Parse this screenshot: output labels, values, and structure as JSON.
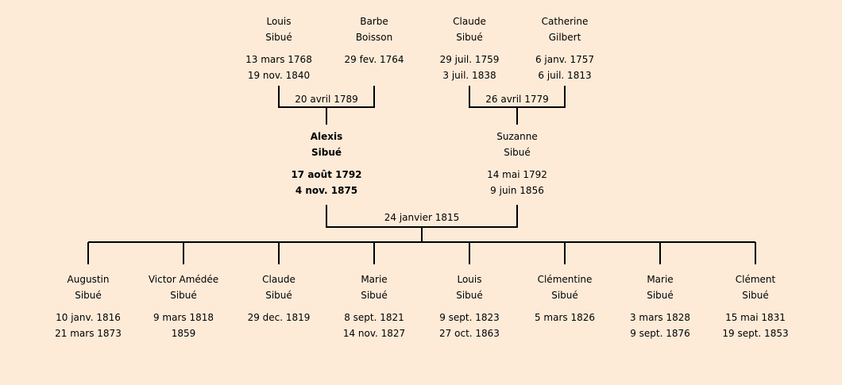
{
  "grandparents": [
    {
      "first": "Louis",
      "last": "Sibué",
      "birth": "13 mars 1768",
      "death": "19 nov. 1840"
    },
    {
      "first": "Barbe",
      "last": "Boisson",
      "birth": "29 fev. 1764",
      "death": ""
    },
    {
      "first": "Claude",
      "last": "Sibué",
      "birth": "29 juil. 1759",
      "death": "3 juil. 1838"
    },
    {
      "first": "Catherine",
      "last": "Gilbert",
      "birth": "6 janv. 1757",
      "death": "6 juil. 1813"
    }
  ],
  "grandparent_marriages": [
    "20 avril 1789",
    "26 avril 1779"
  ],
  "parents": [
    {
      "first": "Alexis",
      "last": "Sibué",
      "birth": "17 août 1792",
      "death": "4 nov. 1875",
      "highlighted": true
    },
    {
      "first": "Suzanne",
      "last": "Sibué",
      "birth": "14 mai 1792",
      "death": "9 juin 1856"
    }
  ],
  "parent_marriage": "24 janvier 1815",
  "children": [
    {
      "first": "Augustin",
      "last": "Sibué",
      "birth": "10 janv. 1816",
      "death": "21 mars 1873"
    },
    {
      "first": "Victor Amédée",
      "last": "Sibué",
      "birth": "9 mars 1818",
      "death": "1859"
    },
    {
      "first": "Claude",
      "last": "Sibué",
      "birth": "29 dec. 1819",
      "death": ""
    },
    {
      "first": "Marie",
      "last": "Sibué",
      "birth": "8 sept. 1821",
      "death": "14 nov. 1827"
    },
    {
      "first": "Louis",
      "last": "Sibué",
      "birth": "9 sept. 1823",
      "death": "27 oct. 1863"
    },
    {
      "first": "Clémentine",
      "last": "Sibué",
      "birth": "5 mars 1826",
      "death": ""
    },
    {
      "first": "Marie",
      "last": "Sibué",
      "birth": "3 mars 1828",
      "death": "9 sept. 1876"
    },
    {
      "first": "Clément",
      "last": "Sibué",
      "birth": "15 mai 1831",
      "death": "19 sept. 1853"
    }
  ],
  "colors": {
    "background": "#fdebd8",
    "lines": "#000000"
  }
}
